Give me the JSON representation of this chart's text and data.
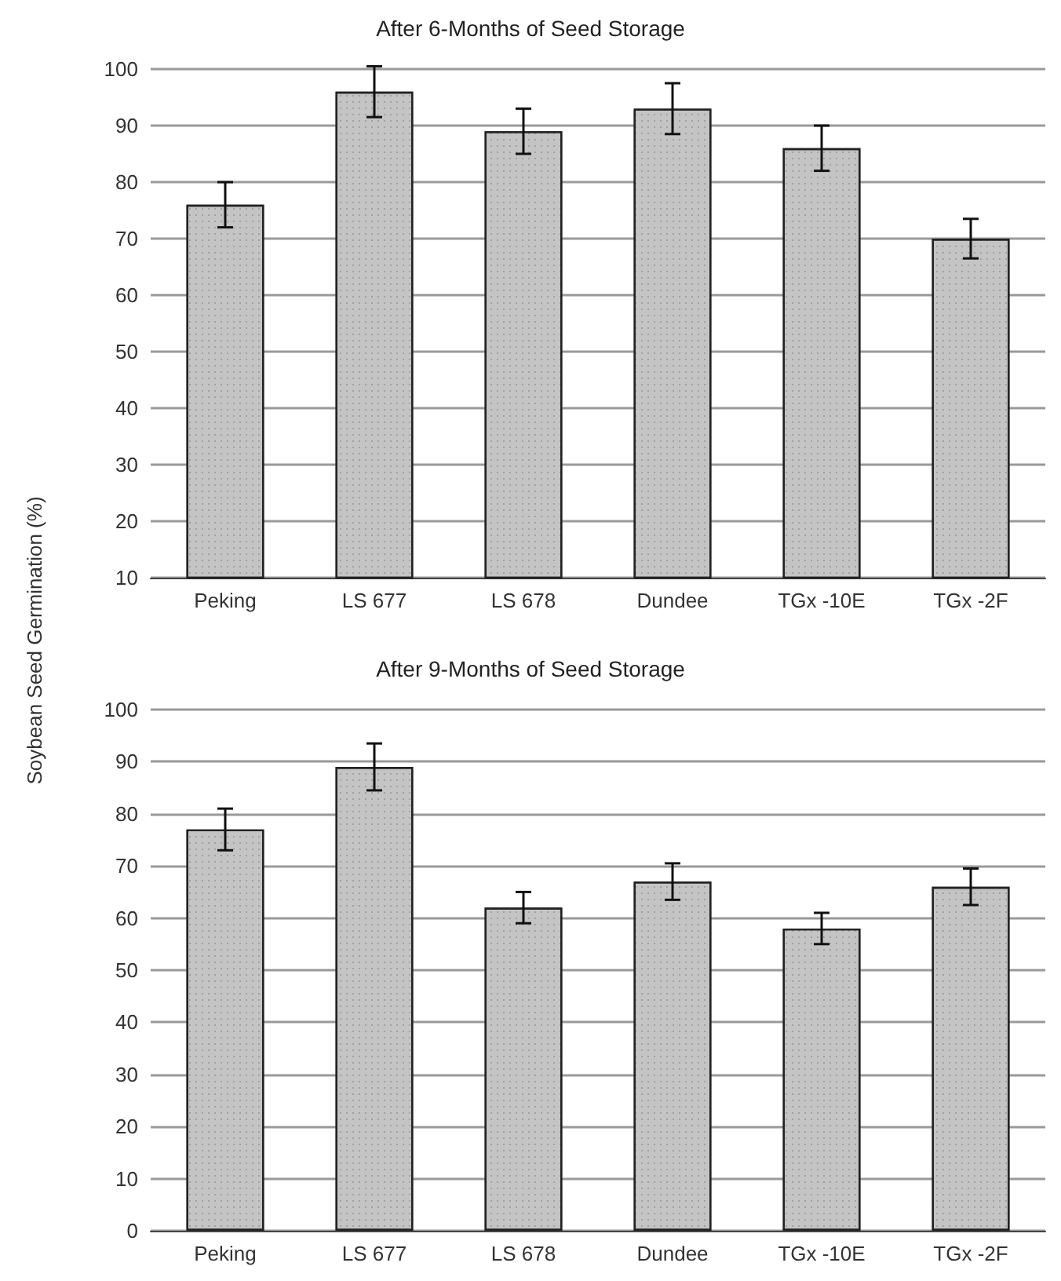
{
  "chart_data": [
    {
      "type": "bar",
      "title": "After 6-Months of Seed Storage",
      "ylabel": "Soybean Seed Germination (%)",
      "categories": [
        "Peking",
        "LS 677",
        "LS 678",
        "Dundee",
        "TGx -10E",
        "TGx -2F"
      ],
      "values": [
        76,
        96,
        89,
        93,
        86,
        70
      ],
      "errors": [
        4,
        4.5,
        4,
        4.5,
        4,
        3.5
      ],
      "color": "#c4c4c4",
      "ylim": [
        10,
        100
      ],
      "yticks": [
        10,
        20,
        30,
        40,
        50,
        60,
        70,
        80,
        90,
        100
      ],
      "grid": "y"
    },
    {
      "type": "bar",
      "title": "After 9-Months of Seed Storage",
      "categories": [
        "Peking",
        "LS 677",
        "LS 678",
        "Dundee",
        "TGx -10E",
        "TGx -2F"
      ],
      "values": [
        77,
        89,
        62,
        67,
        58,
        66
      ],
      "errors": [
        4,
        4.5,
        3,
        3.5,
        3,
        3.5
      ],
      "color": "#c4c4c4",
      "ylim": [
        0,
        100
      ],
      "yticks": [
        0,
        10,
        20,
        30,
        40,
        50,
        60,
        70,
        80,
        90,
        100
      ],
      "grid": "y"
    }
  ]
}
